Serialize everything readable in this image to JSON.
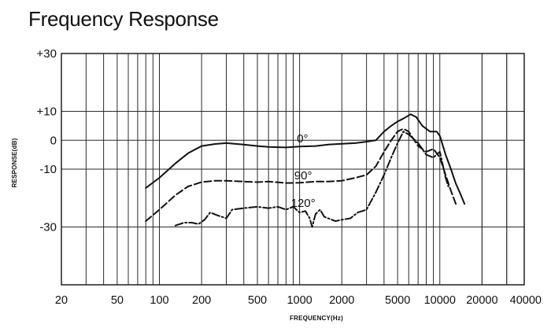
{
  "title": "Frequency Response",
  "chart_data": {
    "type": "line",
    "title": "Frequency Response",
    "xlabel": "FREQUENCY(Hz)",
    "ylabel": "RESPONSE(dB)",
    "xscale": "log",
    "xlim": [
      20,
      40000
    ],
    "ylim": [
      -50,
      30
    ],
    "grid": true,
    "x_ticks": [
      20,
      50,
      100,
      200,
      500,
      1000,
      2000,
      5000,
      10000,
      20000,
      40000
    ],
    "x_tick_labels": [
      "20",
      "50",
      "100",
      "200",
      "500",
      "1000",
      "2000",
      "5000",
      "10000",
      "20000",
      "40000"
    ],
    "y_ticks": [
      30,
      10,
      0,
      -10,
      -30
    ],
    "y_tick_labels": [
      "+30",
      "+10",
      "0",
      "-10",
      "-30"
    ],
    "series": [
      {
        "name": "0°",
        "dash": "solid",
        "x": [
          80,
          100,
          130,
          160,
          200,
          250,
          300,
          400,
          500,
          600,
          800,
          1000,
          1300,
          1600,
          2000,
          2500,
          3000,
          3500,
          4000,
          4500,
          5000,
          5500,
          6200,
          6800,
          7500,
          8500,
          9500,
          10000,
          11000,
          12000,
          13000,
          14000,
          15000
        ],
        "y": [
          -16.5,
          -13,
          -8,
          -4.5,
          -2,
          -1.3,
          -1,
          -1.5,
          -2,
          -2.3,
          -2.5,
          -2.2,
          -2,
          -1.5,
          -1.2,
          -1,
          -0.5,
          0,
          3,
          5,
          6.5,
          7.5,
          9,
          8,
          5,
          3,
          3,
          1.5,
          -5,
          -10,
          -15,
          -18.5,
          -22
        ]
      },
      {
        "name": "90°",
        "dash": "dashed",
        "x": [
          80,
          100,
          130,
          160,
          200,
          250,
          300,
          400,
          500,
          600,
          800,
          1000,
          1300,
          1600,
          2000,
          2500,
          3000,
          3500,
          4000,
          4500,
          5000,
          5500,
          6000,
          7000,
          8000,
          9000,
          10000,
          11000,
          12000,
          13000
        ],
        "y": [
          -28,
          -24,
          -19,
          -16,
          -14.5,
          -14,
          -14,
          -14.3,
          -14.5,
          -14.3,
          -14.8,
          -14.7,
          -14.3,
          -14.3,
          -14,
          -13,
          -12,
          -9,
          -4,
          0,
          3,
          4,
          3,
          -2,
          -4,
          -3,
          -6,
          -12,
          -17.5,
          -22
        ]
      },
      {
        "name": "120°",
        "dash": "dash-dot",
        "x": [
          130,
          150,
          170,
          190,
          210,
          230,
          260,
          300,
          330,
          400,
          500,
          600,
          700,
          800,
          900,
          1000,
          1100,
          1180,
          1230,
          1300,
          1400,
          1500,
          1600,
          1800,
          2000,
          2300,
          2600,
          3000,
          3500,
          4000,
          4500,
          5000,
          5500,
          6000,
          7000,
          8000,
          9000,
          10000,
          11000,
          11500
        ],
        "y": [
          -29.5,
          -28.5,
          -28.5,
          -29,
          -27.5,
          -25,
          -26,
          -27,
          -24,
          -23.5,
          -23,
          -23.5,
          -23,
          -24,
          -23,
          -25,
          -24.5,
          -27,
          -30,
          -25.5,
          -24,
          -26.5,
          -27,
          -28,
          -27.5,
          -27,
          -25,
          -24,
          -18,
          -12,
          -6,
          -1,
          3,
          2,
          -1,
          -5,
          -6,
          -4,
          -13,
          -16
        ]
      }
    ]
  }
}
